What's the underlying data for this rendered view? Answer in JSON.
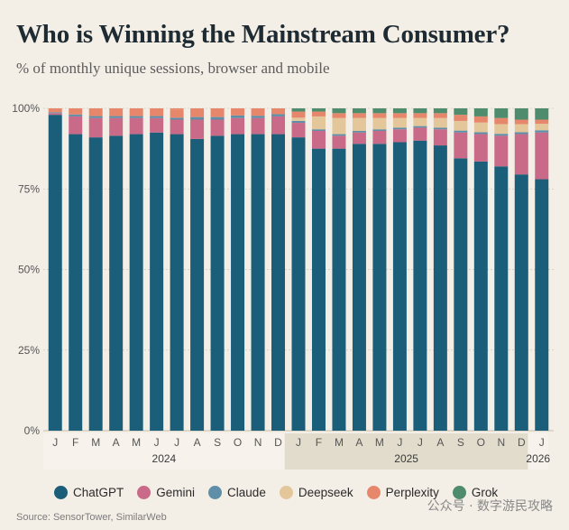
{
  "title": "Who is Winning the Mainstream Consumer?",
  "subtitle": "% of monthly unique sessions, browser and mobile",
  "source": "Source: SensorTower, SimilarWeb",
  "watermark": "公众号 · 数字游民攻略",
  "colors": {
    "ChatGPT": "#1b5e7a",
    "Gemini": "#c96a88",
    "Claude": "#5f8fa8",
    "Deepseek": "#e3c79a",
    "Perplexity": "#e6876c",
    "Grok": "#4f8c6d",
    "year_band_2024": "#f7f3ec",
    "year_band_2025": "#e2dccc",
    "year_band_2026": "#f7f3ec",
    "grid": "#cfc8bb"
  },
  "chart_data": {
    "type": "bar",
    "stacked": true,
    "categories": [
      "J",
      "F",
      "M",
      "A",
      "M",
      "J",
      "J",
      "A",
      "S",
      "O",
      "N",
      "D",
      "J",
      "F",
      "M",
      "A",
      "M",
      "J",
      "J",
      "A",
      "S",
      "O",
      "N",
      "D",
      "J"
    ],
    "years": [
      {
        "label": "2024",
        "start": 0,
        "end": 11
      },
      {
        "label": "2025",
        "start": 12,
        "end": 23
      },
      {
        "label": "2026",
        "start": 24,
        "end": 24
      }
    ],
    "y_ticks": [
      "0%",
      "25%",
      "50%",
      "75%",
      "100%"
    ],
    "ylim": [
      0,
      100
    ],
    "grid": true,
    "legend_position": "bottom",
    "series": [
      {
        "name": "ChatGPT",
        "values": [
          98,
          92,
          91,
          91.5,
          92,
          92.5,
          92,
          90.5,
          91.5,
          92,
          92,
          92,
          91,
          87.5,
          87.5,
          89,
          89,
          89.5,
          90,
          88.5,
          84.5,
          83.5,
          82,
          79.5,
          78
        ]
      },
      {
        "name": "Gemini",
        "values": [
          0.5,
          5.5,
          6,
          5.5,
          5,
          4.5,
          4.5,
          6,
          5,
          5,
          5,
          5.5,
          4.5,
          5.5,
          4,
          3.5,
          4,
          4,
          4,
          5,
          8,
          8.5,
          9.5,
          12.5,
          14.5
        ]
      },
      {
        "name": "Claude",
        "values": [
          0.3,
          0.6,
          0.6,
          0.6,
          0.6,
          0.6,
          0.6,
          0.8,
          0.8,
          0.8,
          0.7,
          0.7,
          0.6,
          0.5,
          0.5,
          0.5,
          0.5,
          0.5,
          0.5,
          0.5,
          0.6,
          0.6,
          0.6,
          0.6,
          0.7
        ]
      },
      {
        "name": "Deepseek",
        "values": [
          0,
          0,
          0,
          0,
          0,
          0,
          0,
          0,
          0,
          0,
          0,
          0,
          1,
          4,
          5,
          4,
          3.5,
          3,
          2.5,
          3,
          3,
          3,
          3,
          2.5,
          2
        ]
      },
      {
        "name": "Perplexity",
        "values": [
          1.2,
          1.9,
          2.4,
          2.4,
          2.4,
          2.4,
          2.4,
          2.7,
          2.7,
          2.2,
          2.3,
          1.8,
          1.9,
          1.5,
          1.5,
          1.5,
          1.5,
          1.5,
          1.5,
          1.5,
          1.9,
          1.9,
          1.9,
          1.4,
          1.3
        ]
      },
      {
        "name": "Grok",
        "values": [
          0,
          0,
          0,
          0,
          0,
          0,
          0,
          0,
          0,
          0,
          0,
          0,
          1,
          1,
          1.5,
          1.5,
          1.5,
          1.5,
          1.5,
          1.5,
          2,
          2.5,
          3,
          3.5,
          3.5
        ]
      }
    ]
  },
  "legend": [
    "ChatGPT",
    "Gemini",
    "Claude",
    "Deepseek",
    "Perplexity",
    "Grok"
  ]
}
